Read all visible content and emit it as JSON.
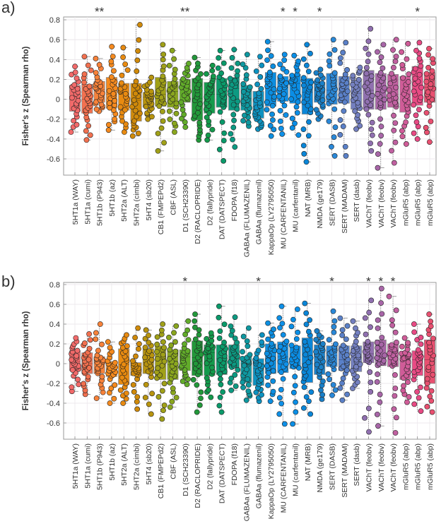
{
  "chart_data": {
    "type": "box",
    "ylabel": "Fisher's z (Spearman rho)",
    "ylim": [
      -0.76,
      0.83
    ],
    "yticks": [
      -0.6,
      -0.4,
      -0.2,
      0,
      0.2,
      0.4,
      0.6,
      0.8
    ],
    "ytick_labels": [
      "-0.6",
      "-0.4",
      "-0.2",
      "0",
      "0.2",
      "0.4",
      "0.6",
      "0.8"
    ],
    "grid": true,
    "categories": [
      "5HT1a (WAY)",
      "5HT1a (cumi)",
      "5HT1b (P943)",
      "5HT1b (az)",
      "5HT2a (ALT)",
      "5HT2a (cimbi)",
      "5HT4 (sb20)",
      "CB1 (FMPEPd2)",
      "CBF (ASL)",
      "D1 (SCH23390)",
      "D2 (RACLOPRIDE)",
      "D2 (fallypride)",
      "DAT (DATSPECT)",
      "FDOPA (f18)",
      "GABAa (FLUMAZENIL)",
      "GABAa (flumazenil)",
      "KappaOp (LY2795050)",
      "MU (CARFENTANIL)",
      "MU (carfentanil)",
      "NAT (MRB)",
      "NMDA (ge179)",
      "SERT (DASB)",
      "SERT (MADAM)",
      "SERT (dasb)",
      "VAChT (feobv)",
      "VAChT (feobv)",
      "VAChT (feobv)",
      "mGluR5 (abp)",
      "mGluR5 (abp)",
      "mGluR5 (abp)"
    ],
    "colors": [
      "#f26a6a",
      "#f2704f",
      "#f7823a",
      "#f58a1e",
      "#e88a10",
      "#d08a0a",
      "#b8940e",
      "#a0a018",
      "#8aa61e",
      "#62ac2a",
      "#22983a",
      "#149a4c",
      "#0a9a6a",
      "#0c9a82",
      "#0e98a0",
      "#0e92c0",
      "#0c8ee0",
      "#0e90e8",
      "#0a8ee6",
      "#0a86d8",
      "#1a80c8",
      "#2a88d8",
      "#5a80c8",
      "#7480c0",
      "#9070b0",
      "#a866a8",
      "#c060a0",
      "#d05c98",
      "#e84a84",
      "#e85070"
    ],
    "panels": [
      {
        "label": "a)",
        "significance": [
          "",
          "",
          "**",
          "",
          "",
          "",
          "",
          "",
          "",
          "**",
          "",
          "",
          "",
          "",
          "",
          "",
          "",
          "*",
          "*",
          "",
          "*",
          "",
          "",
          "",
          "",
          "",
          "",
          "",
          "*",
          ""
        ],
        "stats_format": [
          "min",
          "q1",
          "median",
          "q3",
          "max"
        ],
        "stats": [
          [
            -0.33,
            -0.12,
            0.03,
            0.14,
            0.33
          ],
          [
            -0.41,
            -0.14,
            0.0,
            0.15,
            0.43
          ],
          [
            -0.12,
            -0.03,
            0.1,
            0.18,
            0.41
          ],
          [
            -0.31,
            -0.09,
            0.05,
            0.22,
            0.53
          ],
          [
            -0.33,
            -0.11,
            0.05,
            0.16,
            0.52
          ],
          [
            -0.37,
            -0.22,
            -0.01,
            0.16,
            0.75
          ],
          [
            -0.2,
            -0.08,
            0.02,
            0.07,
            0.22
          ],
          [
            -0.52,
            -0.07,
            0.05,
            0.22,
            0.55
          ],
          [
            -0.33,
            -0.08,
            0.08,
            0.18,
            0.49
          ],
          [
            -0.28,
            -0.03,
            0.1,
            0.2,
            0.36
          ],
          [
            -0.41,
            -0.21,
            0.01,
            0.21,
            0.42
          ],
          [
            -0.41,
            -0.14,
            0.05,
            0.17,
            0.34
          ],
          [
            -0.62,
            -0.08,
            0.05,
            0.21,
            0.49
          ],
          [
            -0.48,
            -0.11,
            0.11,
            0.22,
            0.5
          ],
          [
            -0.27,
            -0.11,
            0.01,
            0.14,
            0.45
          ],
          [
            -0.3,
            -0.19,
            -0.07,
            0.08,
            0.43
          ],
          [
            -0.37,
            -0.07,
            0.12,
            0.27,
            0.58
          ],
          [
            -0.35,
            -0.02,
            0.12,
            0.23,
            0.45
          ],
          [
            -0.36,
            -0.04,
            0.16,
            0.25,
            0.44
          ],
          [
            -0.63,
            -0.15,
            0.07,
            0.21,
            0.55
          ],
          [
            -0.2,
            -0.03,
            0.09,
            0.17,
            0.3
          ],
          [
            -0.57,
            -0.05,
            0.09,
            0.26,
            0.6
          ],
          [
            -0.57,
            -0.04,
            0.1,
            0.23,
            0.57
          ],
          [
            -0.3,
            -0.1,
            0.06,
            0.19,
            0.32
          ],
          [
            -0.52,
            -0.1,
            0.09,
            0.29,
            0.71
          ],
          [
            -0.69,
            -0.1,
            0.08,
            0.26,
            0.55
          ],
          [
            -0.64,
            -0.08,
            0.05,
            0.25,
            0.6
          ],
          [
            -0.45,
            -0.13,
            0.05,
            0.23,
            0.56
          ],
          [
            -0.4,
            -0.06,
            0.14,
            0.33,
            0.57
          ],
          [
            -0.43,
            -0.03,
            0.12,
            0.27,
            0.51
          ]
        ]
      },
      {
        "label": "b)",
        "significance": [
          "",
          "",
          "",
          "",
          "",
          "",
          "",
          "",
          "",
          "*",
          "",
          "",
          "",
          "",
          "",
          "*",
          "",
          "",
          "",
          "",
          "",
          "*",
          "",
          "",
          "*",
          "*",
          "*",
          "",
          "",
          ""
        ],
        "stats_format": [
          "min",
          "q1",
          "median",
          "q3",
          "max"
        ],
        "stats": [
          [
            -0.28,
            -0.07,
            0.02,
            0.13,
            0.26
          ],
          [
            -0.31,
            -0.1,
            0.0,
            0.11,
            0.3
          ],
          [
            -0.35,
            -0.1,
            0.01,
            0.07,
            0.4
          ],
          [
            -0.4,
            -0.13,
            -0.05,
            0.02,
            0.22
          ],
          [
            -0.4,
            -0.21,
            -0.01,
            0.15,
            0.29
          ],
          [
            -0.46,
            -0.12,
            -0.06,
            0.01,
            0.36
          ],
          [
            -0.51,
            -0.1,
            0.01,
            0.15,
            0.34
          ],
          [
            -0.56,
            -0.16,
            0.04,
            0.18,
            0.4
          ],
          [
            -0.44,
            -0.16,
            -0.01,
            0.14,
            0.38
          ],
          [
            -0.21,
            -0.07,
            0.07,
            0.14,
            0.43
          ],
          [
            -0.49,
            -0.12,
            0.06,
            0.23,
            0.5
          ],
          [
            -0.34,
            -0.12,
            0.11,
            0.19,
            0.31
          ],
          [
            -0.49,
            -0.11,
            0.05,
            0.19,
            0.58
          ],
          [
            -0.27,
            -0.04,
            0.07,
            0.19,
            0.47
          ],
          [
            -0.37,
            -0.19,
            0.0,
            0.07,
            0.36
          ],
          [
            -0.38,
            -0.22,
            -0.05,
            0.05,
            0.29
          ],
          [
            -0.38,
            -0.1,
            0.05,
            0.2,
            0.41
          ],
          [
            -0.61,
            -0.09,
            0.07,
            0.22,
            0.58
          ],
          [
            -0.61,
            -0.05,
            0.04,
            0.18,
            0.55
          ],
          [
            -0.51,
            -0.19,
            0.0,
            0.26,
            0.61
          ],
          [
            -0.36,
            -0.11,
            0.07,
            0.19,
            0.33
          ],
          [
            -0.32,
            -0.03,
            0.08,
            0.18,
            0.53
          ],
          [
            -0.37,
            -0.07,
            0.04,
            0.18,
            0.46
          ],
          [
            -0.25,
            -0.08,
            0.06,
            0.18,
            0.43
          ],
          [
            -0.69,
            0.01,
            0.1,
            0.22,
            0.64
          ],
          [
            -0.63,
            -0.02,
            0.07,
            0.24,
            0.76
          ],
          [
            -0.7,
            -0.03,
            0.08,
            0.2,
            0.68
          ],
          [
            -0.39,
            -0.16,
            0.04,
            0.11,
            0.26
          ],
          [
            -0.48,
            -0.12,
            0.04,
            0.13,
            0.4
          ],
          [
            -0.49,
            -0.2,
            0.04,
            0.24,
            0.5
          ]
        ]
      }
    ]
  }
}
